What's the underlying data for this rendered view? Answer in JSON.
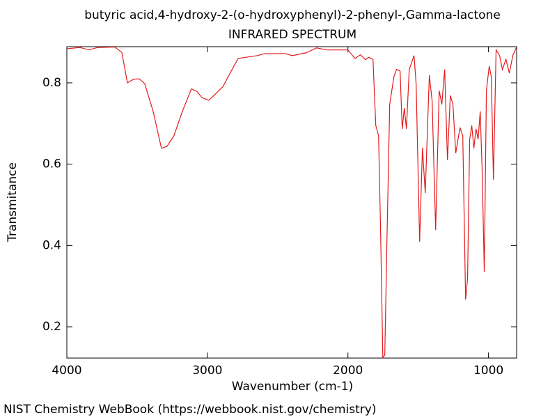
{
  "chart_data": {
    "type": "line",
    "title": "butyric acid,4-hydroxy-2-(o-hydroxyphenyl)-2-phenyl-,Gamma-lactone",
    "subtitle": "INFRARED SPECTRUM",
    "x_label": "Wavenumber (cm-1)",
    "y_label": "Transmitance",
    "footer": "NIST Chemistry WebBook (https://webbook.nist.gov/chemistry)",
    "xlim": [
      4000,
      800
    ],
    "ylim": [
      0.123,
      0.889
    ],
    "xticks": [
      4000,
      3000,
      2000,
      1000
    ],
    "yticks": [
      0.2,
      0.4,
      0.6,
      0.8
    ],
    "grid": false,
    "series": [
      {
        "name": "spectrum",
        "color": "#e41a1c",
        "x": [
          4000,
          3906,
          3842,
          3782,
          3658,
          3609,
          3569,
          3525,
          3485,
          3446,
          3386,
          3327,
          3287,
          3238,
          3178,
          3114,
          3074,
          3040,
          2990,
          2891,
          2782,
          2644,
          2594,
          2446,
          2396,
          2297,
          2223,
          2149,
          2000,
          1950,
          1911,
          1876,
          1851,
          1822,
          1802,
          1782,
          1767,
          1752,
          1738,
          1723,
          1703,
          1673,
          1654,
          1629,
          1614,
          1599,
          1584,
          1564,
          1530,
          1515,
          1490,
          1470,
          1450,
          1421,
          1401,
          1376,
          1351,
          1332,
          1312,
          1292,
          1272,
          1253,
          1233,
          1203,
          1183,
          1163,
          1149,
          1134,
          1119,
          1104,
          1089,
          1074,
          1059,
          1045,
          1030,
          1015,
          995,
          980,
          965,
          946,
          921,
          901,
          876,
          852,
          827,
          802
        ],
        "values": [
          0.884,
          0.887,
          0.881,
          0.887,
          0.888,
          0.875,
          0.8,
          0.809,
          0.81,
          0.798,
          0.73,
          0.639,
          0.644,
          0.67,
          0.73,
          0.785,
          0.779,
          0.764,
          0.757,
          0.79,
          0.86,
          0.867,
          0.872,
          0.872,
          0.867,
          0.874,
          0.886,
          0.881,
          0.881,
          0.86,
          0.869,
          0.857,
          0.863,
          0.858,
          0.695,
          0.67,
          0.421,
          0.125,
          0.13,
          0.404,
          0.747,
          0.815,
          0.833,
          0.829,
          0.687,
          0.738,
          0.687,
          0.833,
          0.867,
          0.798,
          0.409,
          0.64,
          0.529,
          0.819,
          0.755,
          0.438,
          0.781,
          0.747,
          0.833,
          0.61,
          0.769,
          0.747,
          0.627,
          0.69,
          0.67,
          0.267,
          0.318,
          0.661,
          0.695,
          0.639,
          0.687,
          0.661,
          0.73,
          0.582,
          0.335,
          0.781,
          0.841,
          0.815,
          0.562,
          0.881,
          0.867,
          0.833,
          0.858,
          0.824,
          0.867,
          0.887
        ]
      }
    ]
  }
}
